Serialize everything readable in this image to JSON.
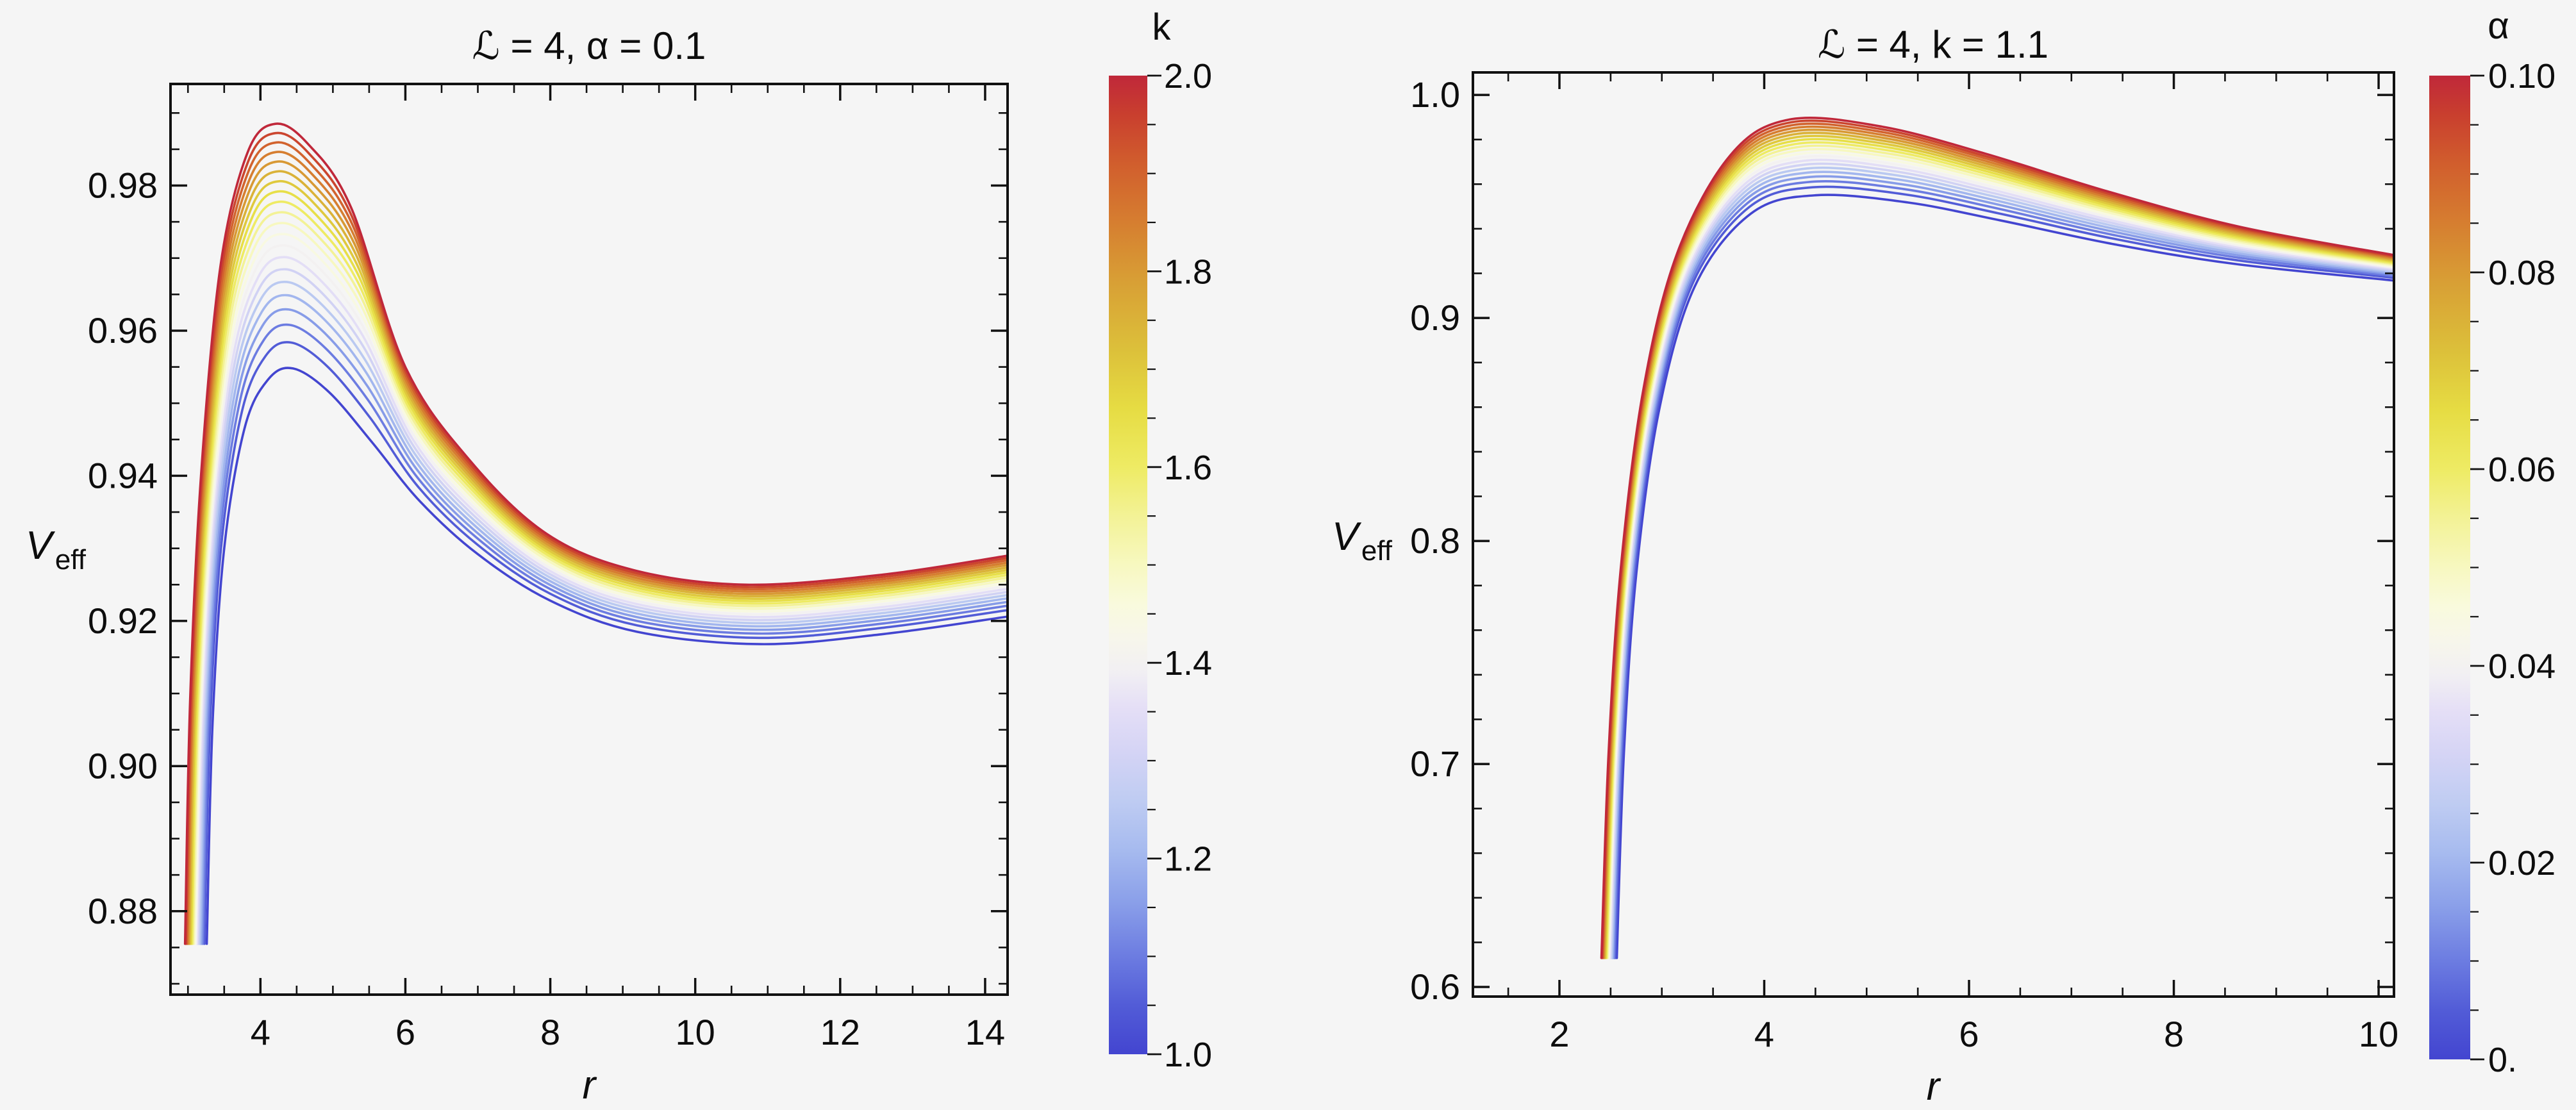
{
  "background_color": "#f5f5f5",
  "text_color": "#0d0d0d",
  "frame_color": "#111111",
  "colormap_stops": [
    [
      0.0,
      "#c0283a"
    ],
    [
      0.04,
      "#c93f2e"
    ],
    [
      0.09,
      "#d15e2d"
    ],
    [
      0.15,
      "#d67e30"
    ],
    [
      0.21,
      "#d89f35"
    ],
    [
      0.28,
      "#dcc03a"
    ],
    [
      0.34,
      "#e6dc43"
    ],
    [
      0.4,
      "#eeeb64"
    ],
    [
      0.45,
      "#f3f296"
    ],
    [
      0.5,
      "#f7f8c0"
    ],
    [
      0.54,
      "#f9fadd"
    ],
    [
      0.575,
      "#f7f6eb"
    ],
    [
      0.61,
      "#f1eff3"
    ],
    [
      0.645,
      "#e5dff6"
    ],
    [
      0.69,
      "#d5d4f5"
    ],
    [
      0.74,
      "#bfccf2"
    ],
    [
      0.79,
      "#a7bbef"
    ],
    [
      0.845,
      "#8a9fe9"
    ],
    [
      0.9,
      "#6c7ce1"
    ],
    [
      0.95,
      "#525cd7"
    ],
    [
      1.0,
      "#4345d0"
    ]
  ],
  "chart_data": [
    {
      "type": "line",
      "title": "ℒ = 4, α = 0.1",
      "xlabel": "r",
      "ylabel_main": "V",
      "ylabel_sub": "eff",
      "x_range": [
        2.759,
        14.31
      ],
      "y_range": [
        0.8685,
        0.994
      ],
      "x_major_ticks": [
        4,
        6,
        8,
        10,
        12,
        14
      ],
      "x_major_labels": [
        "4",
        "6",
        "8",
        "10",
        "12",
        "14"
      ],
      "x_minor_step": 0.5,
      "y_major_ticks": [
        0.88,
        0.9,
        0.92,
        0.94,
        0.96,
        0.98
      ],
      "y_major_labels": [
        "0.88",
        "0.90",
        "0.92",
        "0.94",
        "0.96",
        "0.98"
      ],
      "y_minor_step": 0.005,
      "grid": false,
      "legend": {
        "title": "k",
        "position": "right-bar",
        "min": 1.0,
        "max": 2.0,
        "major_ticks": [
          2.0,
          1.8,
          1.6,
          1.4,
          1.2,
          1.0
        ],
        "major_labels": [
          "2.0",
          "1.8",
          "1.6",
          "1.4",
          "1.2",
          "1.0"
        ],
        "minor_step": 0.05
      },
      "series_param": "k",
      "param_values": [
        1.0,
        1.05,
        1.1,
        1.15,
        1.2,
        1.25,
        1.3,
        1.35,
        1.4,
        1.45,
        1.5,
        1.55,
        1.6,
        1.65,
        1.7,
        1.75,
        1.8,
        1.85,
        1.9,
        1.95,
        2.0
      ],
      "spacing_exponent": 0.75,
      "envelope_low": {
        "param": 1.0,
        "points": [
          [
            3.26,
            0.8755
          ],
          [
            3.34,
            0.906
          ],
          [
            3.5,
            0.93
          ],
          [
            3.78,
            0.9465
          ],
          [
            4.1,
            0.9532
          ],
          [
            4.45,
            0.9548
          ],
          [
            4.95,
            0.9515
          ],
          [
            5.55,
            0.9445
          ],
          [
            6.2,
            0.9365
          ],
          [
            7.0,
            0.9292
          ],
          [
            8.0,
            0.9228
          ],
          [
            9.2,
            0.9185
          ],
          [
            10.9,
            0.9168
          ],
          [
            12.6,
            0.9182
          ],
          [
            14.31,
            0.9206
          ]
        ]
      },
      "envelope_high": {
        "param": 2.0,
        "points": [
          [
            2.96,
            0.8755
          ],
          [
            3.03,
            0.909
          ],
          [
            3.18,
            0.94
          ],
          [
            3.45,
            0.969
          ],
          [
            3.82,
            0.9845
          ],
          [
            4.2,
            0.9885
          ],
          [
            4.65,
            0.9858
          ],
          [
            5.25,
            0.977
          ],
          [
            6.0,
            0.955
          ],
          [
            6.9,
            0.942
          ],
          [
            7.95,
            0.932
          ],
          [
            9.15,
            0.927
          ],
          [
            10.7,
            0.925
          ],
          [
            12.6,
            0.9264
          ],
          [
            14.31,
            0.929
          ]
        ]
      }
    },
    {
      "type": "line",
      "title": "ℒ = 4, k = 1.1",
      "xlabel": "r",
      "ylabel_main": "V",
      "ylabel_sub": "eff",
      "x_range": [
        1.155,
        10.15
      ],
      "y_range": [
        0.5957,
        1.0101
      ],
      "x_major_ticks": [
        2,
        4,
        6,
        8,
        10
      ],
      "x_major_labels": [
        "2",
        "4",
        "6",
        "8",
        "10"
      ],
      "x_minor_step": 0.5,
      "y_major_ticks": [
        0.6,
        0.7,
        0.8,
        0.9,
        1.0
      ],
      "y_major_labels": [
        "0.6",
        "0.7",
        "0.8",
        "0.9",
        "1.0"
      ],
      "y_minor_step": 0.02,
      "grid": false,
      "legend": {
        "title": "α",
        "position": "right-bar",
        "min": 0.0,
        "max": 0.1,
        "major_ticks": [
          0.1,
          0.08,
          0.06,
          0.04,
          0.02,
          0.0
        ],
        "major_labels": [
          "0.10",
          "0.08",
          "0.06",
          "0.04",
          "0.02",
          "0."
        ],
        "minor_step": 0.005
      },
      "series_param": "α",
      "param_values": [
        0,
        0.005,
        0.01,
        0.015,
        0.02,
        0.025,
        0.03,
        0.035,
        0.04,
        0.045,
        0.05,
        0.055,
        0.06,
        0.065,
        0.07,
        0.075,
        0.08,
        0.085,
        0.09,
        0.095,
        0.1
      ],
      "spacing_exponent": 0.75,
      "envelope_low": {
        "param": 0.0,
        "points": [
          [
            2.56,
            0.613
          ],
          [
            2.63,
            0.705
          ],
          [
            2.75,
            0.785
          ],
          [
            2.97,
            0.858
          ],
          [
            3.32,
            0.914
          ],
          [
            3.87,
            0.9468
          ],
          [
            4.5,
            0.955
          ],
          [
            5.4,
            0.9518
          ],
          [
            6.3,
            0.9438
          ],
          [
            7.4,
            0.9332
          ],
          [
            8.6,
            0.9242
          ],
          [
            10.15,
            0.9168
          ]
        ]
      },
      "envelope_high": {
        "param": 0.1,
        "points": [
          [
            2.41,
            0.613
          ],
          [
            2.48,
            0.705
          ],
          [
            2.6,
            0.788
          ],
          [
            2.82,
            0.868
          ],
          [
            3.15,
            0.929
          ],
          [
            3.67,
            0.973
          ],
          [
            4.25,
            0.989
          ],
          [
            5.15,
            0.9858
          ],
          [
            6.15,
            0.9738
          ],
          [
            7.35,
            0.9568
          ],
          [
            8.65,
            0.9408
          ],
          [
            10.15,
            0.9282
          ]
        ]
      }
    }
  ]
}
